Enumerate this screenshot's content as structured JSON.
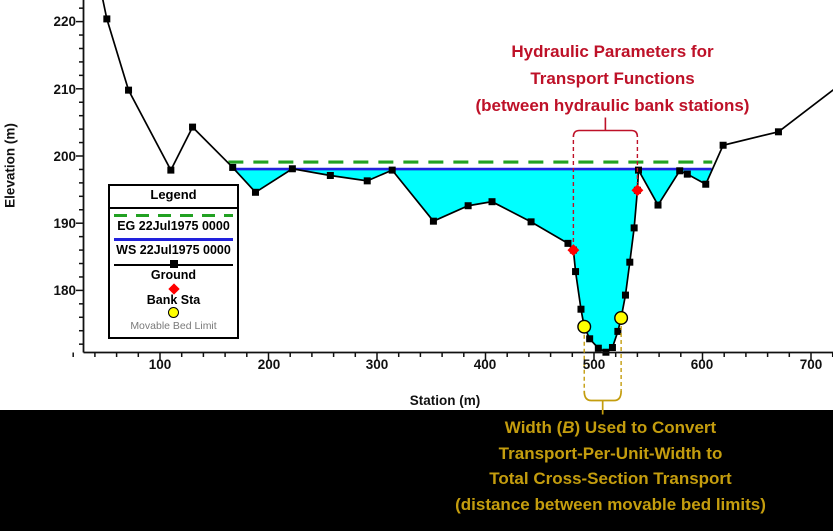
{
  "axes": {
    "x": {
      "label": "Station (m)",
      "ticks": [
        "100",
        "200",
        "300",
        "400",
        "500",
        "600",
        "700"
      ]
    },
    "y": {
      "label": "Elevation (m)",
      "ticks": [
        "220",
        "210",
        "200",
        "190",
        "180"
      ]
    }
  },
  "legend": {
    "title": "Legend",
    "items": [
      {
        "label": "EG 22Jul1975 0000",
        "symbol": "green-dashed-line"
      },
      {
        "label": "WS 22Jul1975 0000",
        "symbol": "blue-solid-line"
      },
      {
        "label": "Ground",
        "symbol": "black-line-square-marker"
      },
      {
        "label": "Bank Sta",
        "symbol": "red-diamond"
      },
      {
        "label": "Movable Bed Limit",
        "symbol": "yellow-circle"
      }
    ]
  },
  "annotations": {
    "red": {
      "line1": "Hydraulic Parameters for",
      "line2": "Transport Functions",
      "line3": "(between hydraulic bank stations)"
    },
    "gold": {
      "line1_pre": "Width (",
      "line1_var": "B",
      "line1_post": ") Used to Convert",
      "line2": "Transport-Per-Unit-Width to",
      "line3": "Total Cross-Section Transport",
      "line4": "(distance between movable bed limits)"
    }
  },
  "colors": {
    "water_fill": "#00FFFF",
    "eg_line": "#22A122",
    "ws_line": "#2222DD",
    "ground_line": "#000000",
    "bank_sta": "#FF0000",
    "movable_bed": "#FFFF00",
    "annotation_red": "#BE1128",
    "annotation_gold": "#C49D0E",
    "axis": "#111111",
    "band_background": "#000000"
  },
  "chart_data": {
    "type": "line",
    "title": "Cross section: Elevation vs Station",
    "xlabel": "Station (m)",
    "ylabel": "Elevation (m)",
    "xlim": [
      29,
      720
    ],
    "ylim": [
      171,
      223
    ],
    "grid": false,
    "legend_position": "upper-left-inset",
    "energy_grade": {
      "name": "EG 22Jul1975 0000",
      "elevation": 199.1,
      "station_start": 163,
      "station_end": 609
    },
    "water_surface": {
      "name": "WS 22Jul1975 0000",
      "elevation": 198.05,
      "station_start": 167,
      "station_end": 608.5
    },
    "series": [
      {
        "name": "EG 22Jul1975 0000",
        "type": "hline",
        "style": "green-dashed",
        "value": 199.1
      },
      {
        "name": "WS 22Jul1975 0000",
        "type": "hline",
        "style": "blue-solid",
        "value": 198.05
      },
      {
        "name": "Ground",
        "type": "line+marker",
        "style": "black-square-markers",
        "points": [
          [
            47,
            223.5
          ],
          [
            51,
            220.4
          ],
          [
            71,
            209.8
          ],
          [
            110,
            197.9
          ],
          [
            130,
            204.3
          ],
          [
            167,
            198.3
          ],
          [
            188,
            194.6
          ],
          [
            222,
            198.1
          ],
          [
            257,
            197.1
          ],
          [
            291,
            196.3
          ],
          [
            314,
            197.9
          ],
          [
            352,
            190.3
          ],
          [
            384,
            192.6
          ],
          [
            406,
            193.2
          ],
          [
            442,
            190.2
          ],
          [
            476,
            187.0
          ],
          [
            481,
            186.0
          ],
          [
            483,
            182.8
          ],
          [
            488,
            177.2
          ],
          [
            491,
            174.6
          ],
          [
            496,
            172.8
          ],
          [
            504,
            171.4
          ],
          [
            511,
            170.8
          ],
          [
            517,
            171.5
          ],
          [
            522,
            173.9
          ],
          [
            525,
            175.9
          ],
          [
            529,
            179.3
          ],
          [
            533,
            184.2
          ],
          [
            537,
            189.3
          ],
          [
            540,
            194.9
          ],
          [
            541,
            197.9
          ],
          [
            559,
            192.7
          ],
          [
            579,
            197.8
          ],
          [
            586,
            197.3
          ],
          [
            603,
            195.8
          ],
          [
            619,
            201.6
          ],
          [
            670,
            203.6
          ],
          [
            721,
            209.9
          ]
        ]
      },
      {
        "name": "Bank Sta",
        "type": "scatter",
        "style": "red-diamond",
        "points": [
          [
            481,
            186.0
          ],
          [
            540,
            194.9
          ]
        ]
      },
      {
        "name": "Movable Bed Limit",
        "type": "scatter",
        "style": "yellow-circle",
        "points": [
          [
            491,
            174.6
          ],
          [
            525,
            175.9
          ]
        ]
      }
    ]
  }
}
